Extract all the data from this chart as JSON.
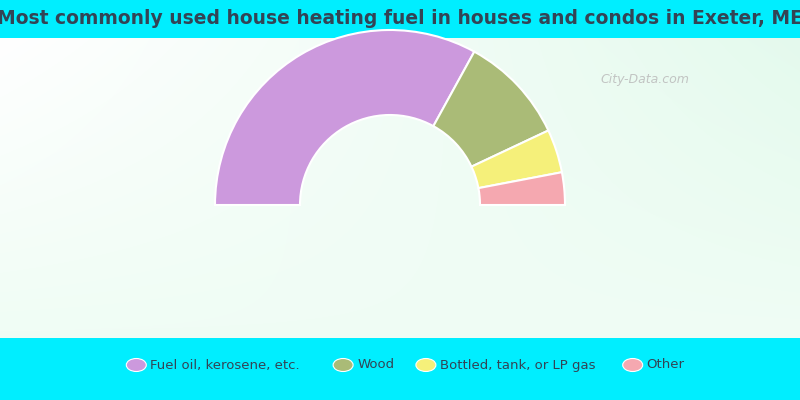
{
  "title": "Most commonly used house heating fuel in houses and condos in Exeter, ME",
  "segments": [
    {
      "label": "Fuel oil, kerosene, etc.",
      "value": 66,
      "color": "#cc99dd"
    },
    {
      "label": "Wood",
      "value": 20,
      "color": "#aabb77"
    },
    {
      "label": "Bottled, tank, or LP gas",
      "value": 8,
      "color": "#f5f07a"
    },
    {
      "label": "Other",
      "value": 6,
      "color": "#f5a8b0"
    }
  ],
  "bg_cyan": "#00eeff",
  "title_color": "#334455",
  "title_fontsize": 13.5,
  "watermark": "City-Data.com",
  "watermark_color": "#bbbbbb",
  "legend_fontsize": 9.5,
  "legend_text_color": "#334455",
  "chart_bg_top": "#f0faf5",
  "chart_bg_bottom": "#c8f0d8"
}
